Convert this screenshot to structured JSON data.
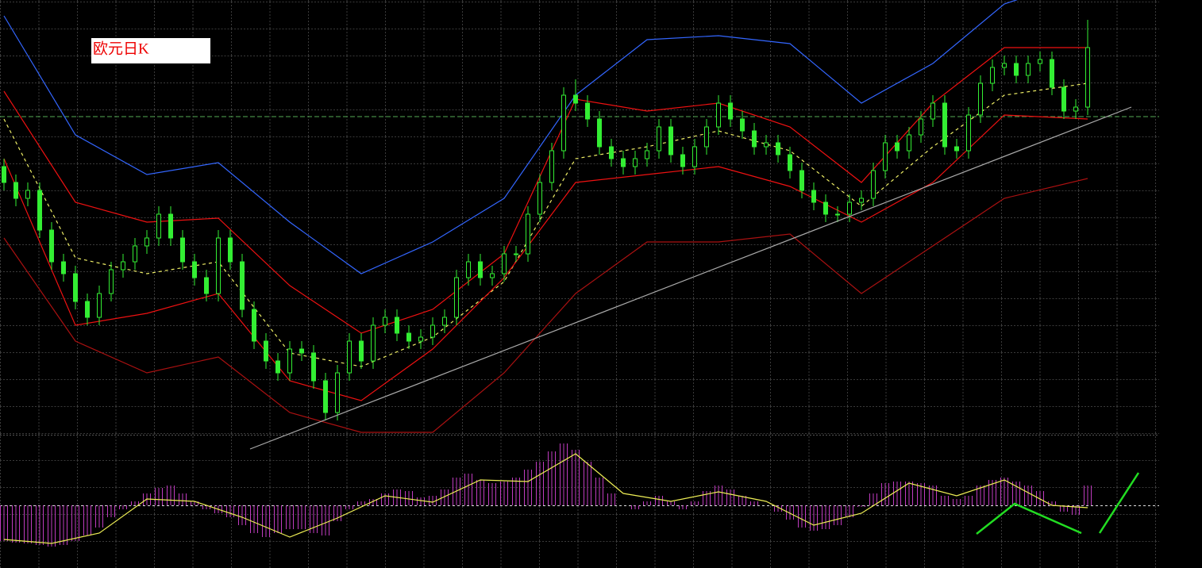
{
  "chart_data": [
    {
      "type": "candlestick",
      "label": "欧元日K",
      "ylim": [
        0,
        550
      ],
      "up_color": "#33ee33",
      "down_color": "#33ee33",
      "open": [
        340,
        320,
        300,
        310,
        260,
        220,
        205,
        170,
        150,
        180,
        210,
        220,
        240,
        250,
        280,
        250,
        220,
        200,
        180,
        250,
        220,
        160,
        120,
        95,
        80,
        110,
        105,
        70,
        30,
        80,
        120,
        95,
        140,
        150,
        130,
        120,
        125,
        140,
        150,
        200,
        220,
        200,
        205,
        230,
        230,
        280,
        320,
        360,
        430,
        420,
        400,
        365,
        350,
        340,
        350,
        360,
        390,
        355,
        340,
        365,
        390,
        420,
        400,
        385,
        365,
        370,
        355,
        335,
        310,
        295,
        280,
        280,
        295,
        300,
        335,
        370,
        360,
        380,
        400,
        420,
        365,
        360,
        405,
        445,
        465,
        470,
        455,
        470,
        475,
        440,
        410,
        415
      ],
      "high": [
        350,
        330,
        320,
        320,
        270,
        230,
        215,
        180,
        190,
        220,
        230,
        250,
        260,
        290,
        290,
        260,
        230,
        210,
        260,
        260,
        230,
        170,
        130,
        105,
        120,
        120,
        115,
        80,
        90,
        130,
        130,
        150,
        160,
        160,
        140,
        135,
        150,
        160,
        210,
        230,
        230,
        215,
        240,
        240,
        290,
        330,
        370,
        440,
        450,
        430,
        410,
        375,
        360,
        360,
        370,
        400,
        400,
        365,
        375,
        400,
        430,
        430,
        410,
        395,
        380,
        380,
        365,
        345,
        320,
        305,
        290,
        305,
        310,
        345,
        380,
        380,
        390,
        410,
        430,
        430,
        375,
        415,
        455,
        475,
        480,
        480,
        480,
        485,
        485,
        450,
        425,
        525
      ],
      "low": [
        310,
        290,
        290,
        250,
        210,
        195,
        160,
        140,
        140,
        170,
        200,
        210,
        230,
        240,
        240,
        210,
        190,
        170,
        170,
        210,
        150,
        110,
        85,
        70,
        70,
        95,
        60,
        20,
        20,
        70,
        85,
        85,
        130,
        120,
        110,
        110,
        115,
        130,
        140,
        190,
        190,
        190,
        195,
        220,
        220,
        270,
        310,
        350,
        410,
        390,
        355,
        340,
        330,
        330,
        340,
        350,
        345,
        330,
        330,
        355,
        380,
        390,
        375,
        355,
        355,
        345,
        325,
        300,
        285,
        270,
        270,
        270,
        285,
        290,
        325,
        350,
        350,
        370,
        390,
        355,
        350,
        350,
        395,
        435,
        455,
        445,
        445,
        460,
        430,
        400,
        400,
        405
      ],
      "close": [
        320,
        300,
        310,
        260,
        220,
        205,
        170,
        150,
        180,
        210,
        220,
        240,
        250,
        280,
        250,
        220,
        200,
        180,
        250,
        220,
        160,
        120,
        95,
        80,
        110,
        105,
        70,
        30,
        80,
        120,
        95,
        140,
        150,
        130,
        120,
        125,
        140,
        150,
        200,
        220,
        200,
        205,
        230,
        230,
        280,
        320,
        360,
        430,
        420,
        400,
        365,
        350,
        340,
        350,
        360,
        390,
        355,
        340,
        365,
        390,
        420,
        400,
        385,
        365,
        370,
        355,
        335,
        310,
        295,
        280,
        280,
        295,
        300,
        335,
        370,
        360,
        380,
        400,
        420,
        365,
        360,
        405,
        445,
        465,
        470,
        455,
        470,
        475,
        440,
        410,
        415,
        490
      ],
      "bands": {
        "x": [
          0,
          6,
          12,
          18,
          24,
          30,
          36,
          42,
          48,
          54,
          60,
          66,
          72,
          78,
          84,
          91
        ],
        "series": [
          {
            "color": "#3366ff",
            "values": [
              530,
              380,
              330,
              345,
              270,
              205,
              245,
              300,
              430,
              500,
              505,
              495,
              420,
              470,
              545,
              580
            ]
          },
          {
            "color": "#ee1111",
            "values": [
              435,
              295,
              270,
              275,
              190,
              130,
              160,
              230,
              425,
              410,
              420,
              390,
              320,
              420,
              490,
              490
            ]
          },
          {
            "color": "#eeee66",
            "dashed": true,
            "values": [
              400,
              225,
              205,
              220,
              105,
              88,
              125,
              195,
              350,
              365,
              385,
              360,
              290,
              365,
              430,
              445
            ]
          },
          {
            "color": "#ee1111",
            "values": [
              350,
              140,
              155,
              180,
              70,
              45,
              110,
              200,
              320,
              330,
              340,
              315,
              270,
              320,
              405,
              400
            ]
          },
          {
            "color": "#aa1111",
            "values": [
              250,
              120,
              80,
              100,
              30,
              5,
              5,
              80,
              180,
              245,
              245,
              255,
              180,
              240,
              300,
              325
            ]
          }
        ]
      }
    },
    {
      "type": "macd",
      "ylim": [
        -79,
        89
      ],
      "histogram": {
        "color": "#c03cc0",
        "values": [
          -45,
          -47,
          -48,
          -50,
          -52,
          -50,
          -45,
          -38,
          -28,
          -15,
          -5,
          5,
          15,
          22,
          25,
          15,
          5,
          -5,
          -10,
          -15,
          -25,
          -35,
          -40,
          -35,
          -30,
          -30,
          -35,
          -38,
          -20,
          -5,
          5,
          8,
          15,
          20,
          18,
          10,
          12,
          20,
          35,
          40,
          32,
          28,
          30,
          35,
          45,
          55,
          68,
          78,
          70,
          55,
          35,
          15,
          0,
          -5,
          5,
          12,
          5,
          -5,
          5,
          18,
          25,
          20,
          12,
          5,
          0,
          -8,
          -18,
          -28,
          -32,
          -30,
          -25,
          -15,
          -2,
          15,
          28,
          30,
          30,
          28,
          25,
          12,
          8,
          12,
          25,
          32,
          35,
          30,
          25,
          18,
          5,
          -8,
          -12,
          25
        ]
      },
      "signal": {
        "color": "#eeee55",
        "x": [
          0,
          4,
          8,
          12,
          16,
          20,
          24,
          28,
          32,
          36,
          40,
          44,
          48,
          52,
          56,
          60,
          64,
          68,
          72,
          76,
          80,
          84,
          88,
          91
        ],
        "values": [
          -43,
          -48,
          -35,
          8,
          5,
          -15,
          -40,
          -16,
          12,
          4,
          32,
          30,
          65,
          15,
          5,
          17,
          5,
          -25,
          -10,
          28,
          12,
          32,
          0,
          -3
        ]
      }
    }
  ]
}
